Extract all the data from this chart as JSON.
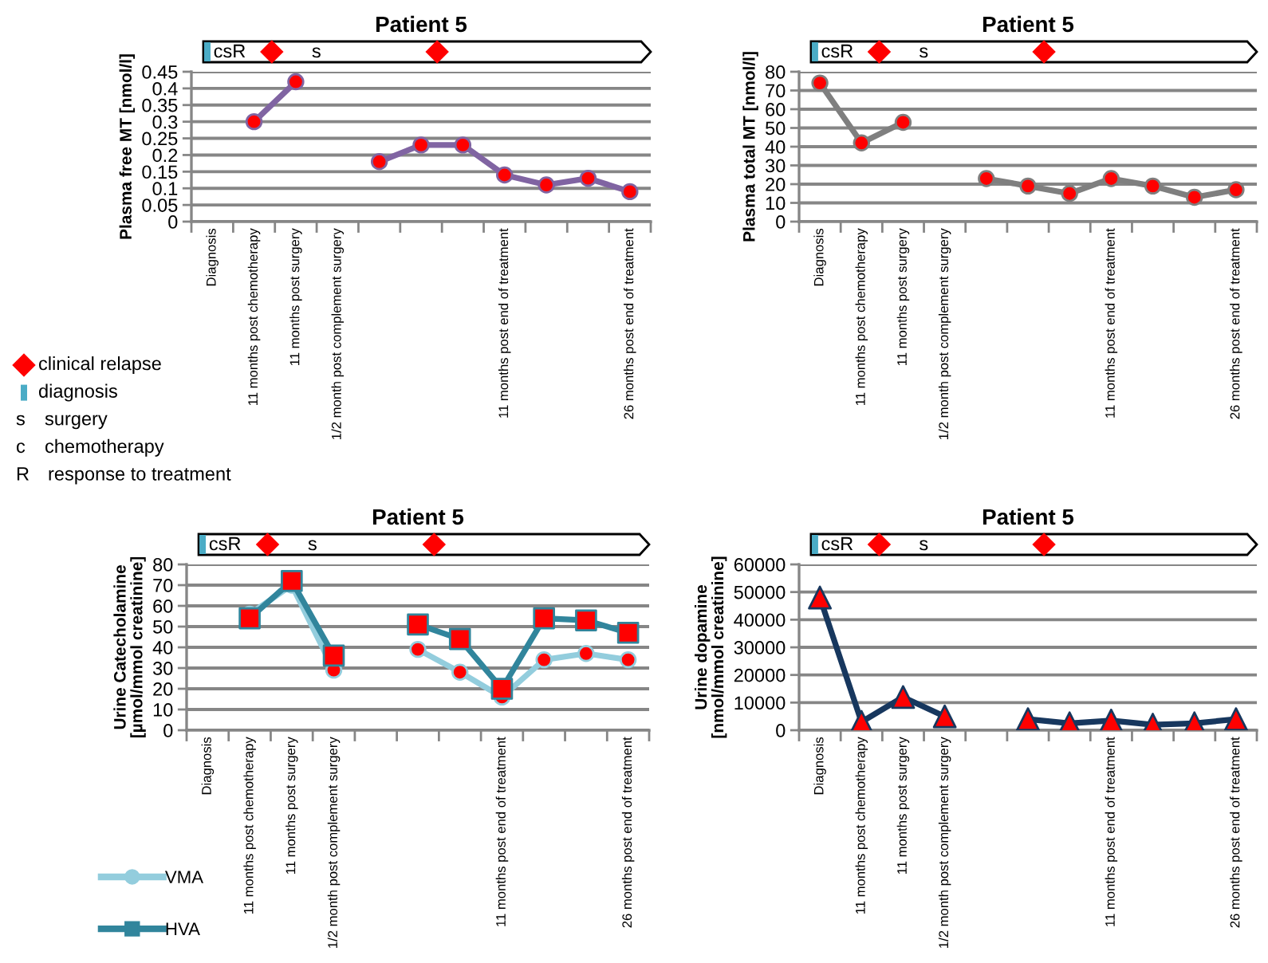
{
  "chart_data": [
    {
      "type": "line",
      "title": "Patient 5",
      "ylabel": "Plasma free MT [nmol/l]",
      "categories": [
        "Diagnosis",
        "11 months post chemotherapy",
        "11 months post surgery",
        "1/2 month post complement surgery",
        null,
        null,
        null,
        "11 months post end of treatment",
        null,
        null,
        "26 months post end of treatment"
      ],
      "series": [
        {
          "color": "#8064a2",
          "colors": [
            "#ff0000",
            "#ff0000",
            "#ff0000",
            "#ff0000",
            "#ff0000",
            "#ff0000",
            "#ff0000",
            "#ff0000",
            "#ff0000",
            "#ff0000",
            "#ff0000"
          ],
          "values": [
            null,
            0.3,
            0.42,
            null,
            0.18,
            0.23,
            0.23,
            0.14,
            0.11,
            0.13,
            0.09
          ]
        }
      ],
      "ylim": [
        0,
        0.45
      ],
      "yticks": [
        0,
        0.05,
        0.1,
        0.15,
        0.2,
        0.25,
        0.3,
        0.35,
        0.4,
        0.45
      ],
      "grid": "y",
      "marker": "circle",
      "line_style": "solid",
      "annotations": [
        "csR",
        "s"
      ]
    },
    {
      "type": "line",
      "title": "Patient 5",
      "ylabel": "Plasma total MT [nmol/l]",
      "categories": [
        "Diagnosis",
        "11 months post chemotherapy",
        "11 months post surgery",
        "1/2 month post complement surgery",
        null,
        null,
        null,
        "11 months post end of treatment",
        null,
        null,
        "26 months post end of treatment"
      ],
      "series": [
        {
          "color": "#7f7f7f",
          "colors": [
            "#ff0000",
            "#ff0000",
            "#ff0000",
            "#ff0000",
            "#ff0000",
            "#ff0000",
            "#ff0000",
            "#ff0000",
            "#ff0000",
            "#ff0000",
            "#ff0000"
          ],
          "values": [
            74,
            42,
            53,
            null,
            23,
            19,
            15,
            23,
            19,
            13,
            17
          ]
        }
      ],
      "ylim": [
        0,
        80
      ],
      "yticks": [
        0,
        10,
        20,
        30,
        40,
        50,
        60,
        70,
        80
      ],
      "grid": "y",
      "marker": "circle",
      "line_style": "solid",
      "annotations": [
        "csR",
        "s"
      ]
    },
    {
      "type": "other",
      "annotations": [
        "clinical relapse",
        "diagnosis",
        "s",
        "surgery",
        "c",
        "chemotherapy",
        "R",
        "response to treatment"
      ]
    },
    {
      "type": "line",
      "title": "Patient 5",
      "ylabel": "Urine Catecholamine\n[µmol/mmol creatinine]",
      "categories": [
        "Diagnosis",
        "11 months post chemotherapy",
        "11 months post surgery",
        "1/2 month post complement surgery",
        null,
        null,
        null,
        "11 months post end of treatment",
        null,
        null,
        "26 months post end of treatment"
      ],
      "series": [
        {
          "name": "VMA",
          "color": "#93cddd",
          "marker": "circle",
          "colors": [
            "#ff0000",
            "#ff0000",
            "#ff0000",
            "#ff0000",
            "#ff0000",
            "#ff0000",
            "#ff0000",
            "#ff0000",
            "#ff0000",
            "#ff0000",
            "#ff0000"
          ],
          "values": [
            null,
            56,
            70,
            29,
            null,
            39,
            28,
            16,
            34,
            37,
            34
          ]
        },
        {
          "name": "HVA",
          "color": "#31859c",
          "marker": "square",
          "colors": [
            "#ff0000",
            "#ff0000",
            "#ff0000",
            "#ff0000",
            "#ff0000",
            "#ff0000",
            "#ff0000",
            "#ff0000",
            "#ff0000",
            "#ff0000",
            "#ff0000"
          ],
          "values": [
            null,
            54,
            72,
            36,
            null,
            51,
            44,
            20,
            54,
            53,
            47
          ]
        }
      ],
      "ylim": [
        0,
        80
      ],
      "yticks": [
        0,
        10,
        20,
        30,
        40,
        50,
        60,
        70,
        80
      ],
      "grid": "y",
      "line_style": "solid",
      "legend": "bottom left",
      "annotations": [
        "csR",
        "s"
      ]
    },
    {
      "type": "line",
      "title": "Patient 5",
      "ylabel": "Urine dopamine\n[nmol/mmol creatinine]",
      "categories": [
        "Diagnosis",
        "11 months post chemotherapy",
        "11 months post surgery",
        "1/2 month post complement surgery",
        null,
        null,
        null,
        "11 months post end of treatment",
        null,
        null,
        "26 months post end of treatment"
      ],
      "series": [
        {
          "color": "#17375e",
          "colors": [
            "#ff0000",
            "#ff0000",
            "#ff0000",
            "#ff0000",
            "#ff0000",
            "#ff0000",
            "#ff0000",
            "#ff0000",
            "#ff0000",
            "#ff0000",
            "#ff0000"
          ],
          "values": [
            48000,
            3000,
            12000,
            5000,
            null,
            4000,
            2500,
            3500,
            2000,
            2500,
            4000
          ]
        }
      ],
      "ylim": [
        0,
        60000
      ],
      "yticks": [
        0,
        10000,
        20000,
        30000,
        40000,
        50000,
        60000
      ],
      "grid": "y",
      "marker": "triangle",
      "line_style": "solid",
      "annotations": [
        "csR",
        "s"
      ]
    }
  ]
}
